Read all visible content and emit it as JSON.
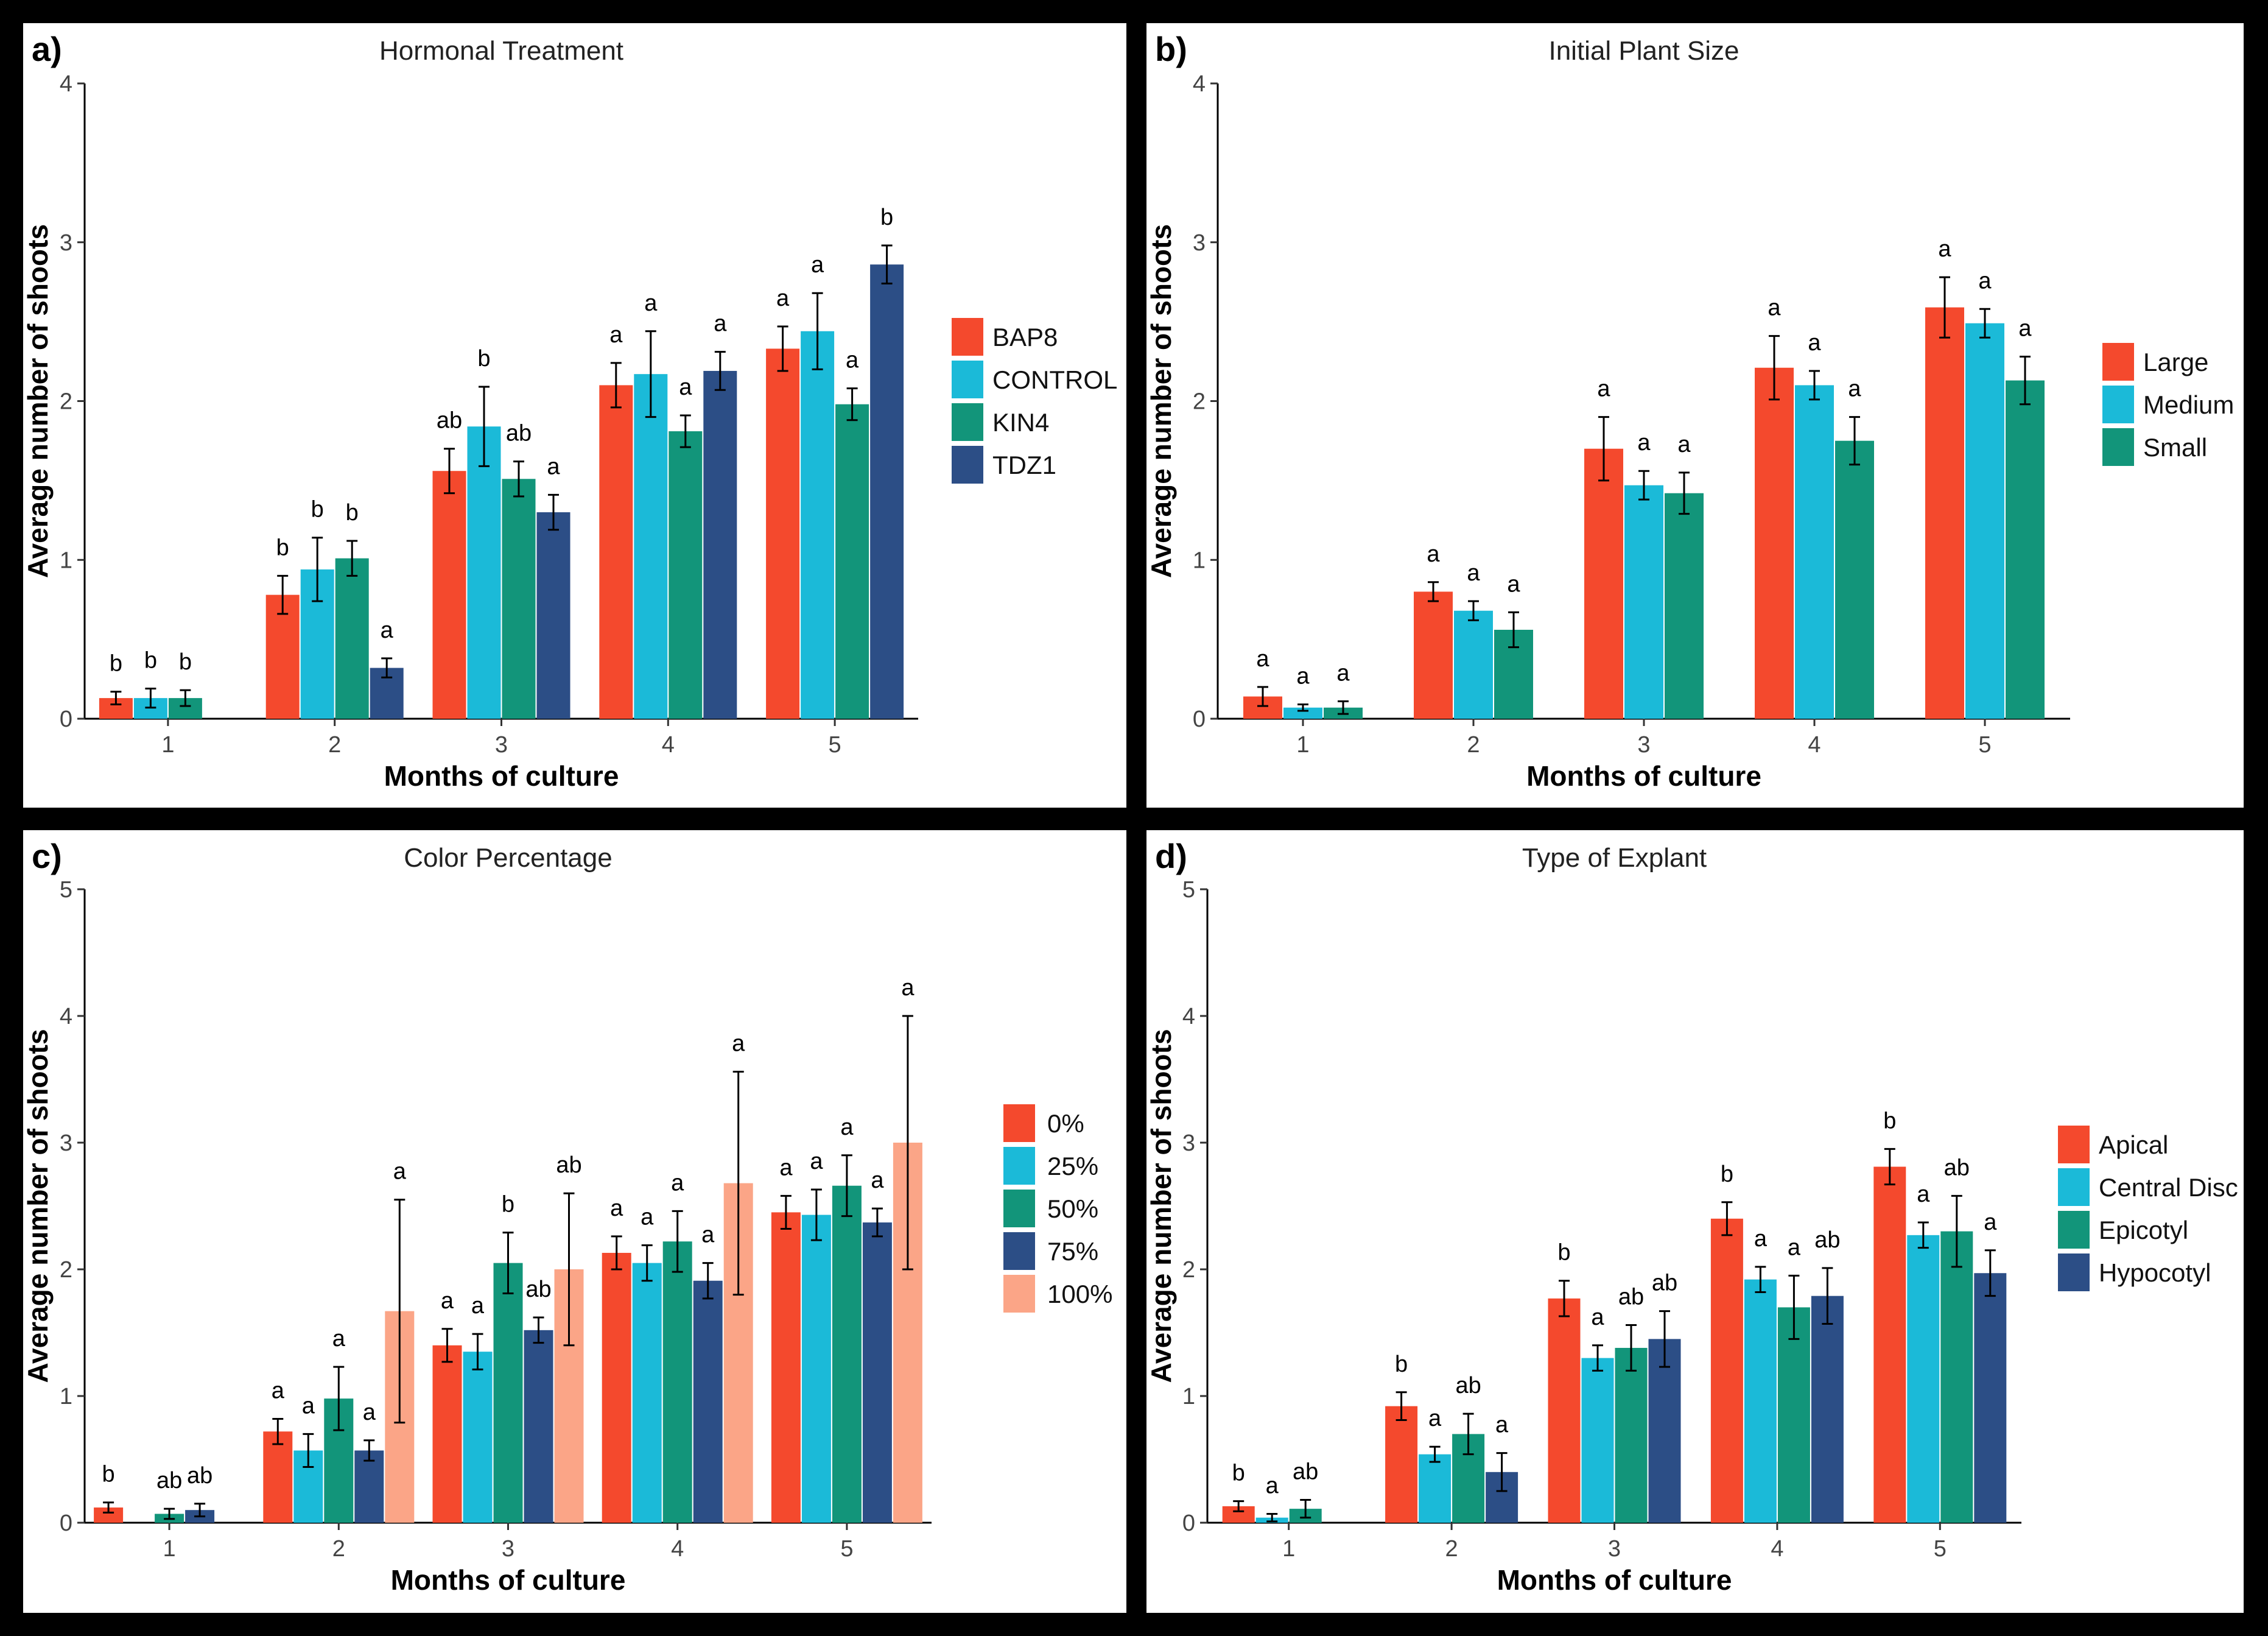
{
  "chart_data": [
    {
      "type": "bar",
      "panel_label": "a)",
      "title": "Hormonal Treatment",
      "xlabel": "Months of culture",
      "ylabel": "Average number of shoots",
      "ylim": [
        0,
        4
      ],
      "yticks": [
        "0",
        "1",
        "2",
        "3",
        "4"
      ],
      "categories": [
        "1",
        "2",
        "3",
        "4",
        "5"
      ],
      "series": [
        {
          "name": "BAP8",
          "color": "#f4492d",
          "values": [
            0.13,
            0.78,
            1.56,
            2.1,
            2.33
          ],
          "errors": [
            0.04,
            0.12,
            0.14,
            0.14,
            0.14
          ],
          "letters": [
            "b",
            "b",
            "ab",
            "a",
            "a"
          ]
        },
        {
          "name": "CONTROL",
          "color": "#1bbad8",
          "values": [
            0.13,
            0.94,
            1.84,
            2.17,
            2.44
          ],
          "errors": [
            0.06,
            0.2,
            0.25,
            0.27,
            0.24
          ],
          "letters": [
            "b",
            "b",
            "b",
            "a",
            "a"
          ]
        },
        {
          "name": "KIN4",
          "color": "#12957a",
          "values": [
            0.13,
            1.01,
            1.51,
            1.81,
            1.98
          ],
          "errors": [
            0.05,
            0.11,
            0.11,
            0.1,
            0.1
          ],
          "letters": [
            "b",
            "b",
            "ab",
            "a",
            "a"
          ]
        },
        {
          "name": "TDZ1",
          "color": "#2c4e86",
          "values": [
            null,
            0.32,
            1.3,
            2.19,
            2.86
          ],
          "errors": [
            null,
            0.06,
            0.11,
            0.12,
            0.12
          ],
          "letters": [
            null,
            "a",
            "a",
            "a",
            "b"
          ]
        }
      ],
      "legend_position": "right"
    },
    {
      "type": "bar",
      "panel_label": "b)",
      "title": "Initial Plant Size",
      "xlabel": "Months of culture",
      "ylabel": "Average number of shoots",
      "ylim": [
        0,
        4
      ],
      "yticks": [
        "0",
        "1",
        "2",
        "3",
        "4"
      ],
      "categories": [
        "1",
        "2",
        "3",
        "4",
        "5"
      ],
      "series": [
        {
          "name": "Large",
          "color": "#f4492d",
          "values": [
            0.14,
            0.8,
            1.7,
            2.21,
            2.59
          ],
          "errors": [
            0.06,
            0.06,
            0.2,
            0.2,
            0.19
          ],
          "letters": [
            "a",
            "a",
            "a",
            "a",
            "a"
          ]
        },
        {
          "name": "Medium",
          "color": "#1bbad8",
          "values": [
            0.07,
            0.68,
            1.47,
            2.1,
            2.49
          ],
          "errors": [
            0.02,
            0.06,
            0.09,
            0.09,
            0.09
          ],
          "letters": [
            "a",
            "a",
            "a",
            "a",
            "a"
          ]
        },
        {
          "name": "Small",
          "color": "#12957a",
          "values": [
            0.07,
            0.56,
            1.42,
            1.75,
            2.13
          ],
          "errors": [
            0.04,
            0.11,
            0.13,
            0.15,
            0.15
          ],
          "letters": [
            "a",
            "a",
            "a",
            "a",
            "a"
          ]
        }
      ],
      "legend_position": "right"
    },
    {
      "type": "bar",
      "panel_label": "c)",
      "title": "Color Percentage",
      "xlabel": "Months of culture",
      "ylabel": "Average number of shoots",
      "ylim": [
        0,
        5
      ],
      "yticks": [
        "0",
        "1",
        "2",
        "3",
        "4",
        "5"
      ],
      "categories": [
        "1",
        "2",
        "3",
        "4",
        "5"
      ],
      "series": [
        {
          "name": "0%",
          "color": "#f4492d",
          "values": [
            0.12,
            0.72,
            1.4,
            2.13,
            2.45
          ],
          "errors": [
            0.04,
            0.1,
            0.13,
            0.13,
            0.13
          ],
          "letters": [
            "b",
            "a",
            "a",
            "a",
            "a"
          ]
        },
        {
          "name": "25%",
          "color": "#1bbad8",
          "values": [
            null,
            0.57,
            1.35,
            2.05,
            2.43
          ],
          "errors": [
            null,
            0.13,
            0.14,
            0.14,
            0.2
          ],
          "letters": [
            null,
            "a",
            "a",
            "a",
            "a"
          ]
        },
        {
          "name": "50%",
          "color": "#12957a",
          "values": [
            0.07,
            0.98,
            2.05,
            2.22,
            2.66
          ],
          "errors": [
            0.04,
            0.25,
            0.24,
            0.24,
            0.24
          ],
          "letters": [
            "ab",
            "a",
            "b",
            "a",
            "a"
          ]
        },
        {
          "name": "75%",
          "color": "#2c4e86",
          "values": [
            0.1,
            0.57,
            1.52,
            1.91,
            2.37
          ],
          "errors": [
            0.05,
            0.08,
            0.1,
            0.14,
            0.11
          ],
          "letters": [
            "ab",
            "a",
            "ab",
            "a",
            "a"
          ]
        },
        {
          "name": "100%",
          "color": "#fba587",
          "values": [
            null,
            1.67,
            2.0,
            2.68,
            3.0
          ],
          "errors": [
            null,
            0.88,
            0.6,
            0.88,
            1.0
          ],
          "letters": [
            null,
            "a",
            "ab",
            "a",
            "a"
          ]
        }
      ],
      "legend_position": "right"
    },
    {
      "type": "bar",
      "panel_label": "d)",
      "title": "Type of Explant",
      "xlabel": "Months of culture",
      "ylabel": "Average number of shoots",
      "ylim": [
        0,
        5
      ],
      "yticks": [
        "0",
        "1",
        "2",
        "3",
        "4",
        "5"
      ],
      "categories": [
        "1",
        "2",
        "3",
        "4",
        "5"
      ],
      "series": [
        {
          "name": "Apical",
          "color": "#f4492d",
          "values": [
            0.13,
            0.92,
            1.77,
            2.4,
            2.81
          ],
          "errors": [
            0.04,
            0.11,
            0.14,
            0.13,
            0.14
          ],
          "letters": [
            "b",
            "b",
            "b",
            "b",
            "b"
          ]
        },
        {
          "name": "Central Disc",
          "color": "#1bbad8",
          "values": [
            0.04,
            0.54,
            1.3,
            1.92,
            2.27
          ],
          "errors": [
            0.03,
            0.06,
            0.1,
            0.1,
            0.1
          ],
          "letters": [
            "a",
            "a",
            "a",
            "a",
            "a"
          ]
        },
        {
          "name": "Epicotyl",
          "color": "#12957a",
          "values": [
            0.11,
            0.7,
            1.38,
            1.7,
            2.3
          ],
          "errors": [
            0.07,
            0.16,
            0.18,
            0.25,
            0.28
          ],
          "letters": [
            "ab",
            "ab",
            "ab",
            "a",
            "ab"
          ]
        },
        {
          "name": "Hypocotyl",
          "color": "#2c4e86",
          "values": [
            null,
            0.4,
            1.45,
            1.79,
            1.97
          ],
          "errors": [
            null,
            0.15,
            0.22,
            0.22,
            0.18
          ],
          "letters": [
            null,
            "a",
            "ab",
            "ab",
            "a"
          ]
        }
      ],
      "legend_position": "right"
    }
  ]
}
